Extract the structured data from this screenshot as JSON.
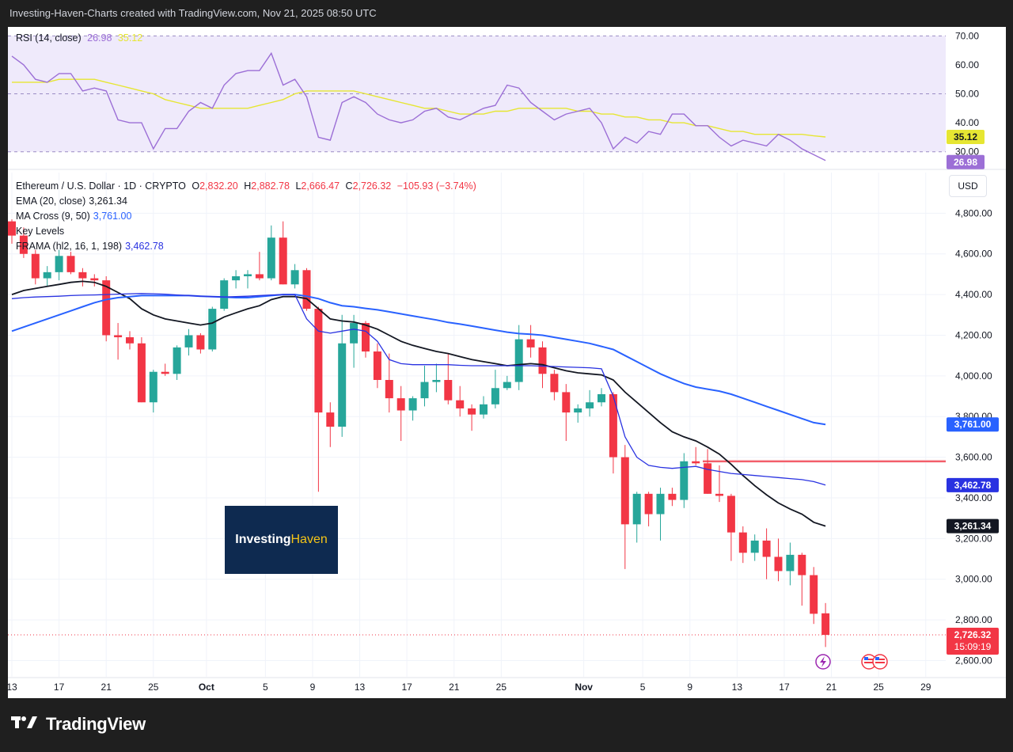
{
  "header": {
    "text": "Investing-Haven-Charts created with TradingView.com, Nov 21, 2025 08:50 UTC"
  },
  "brand": {
    "footer": "TradingView",
    "watermark_main": "Investing",
    "watermark_accent": "Haven"
  },
  "price_pane": {
    "currency_button": "USD",
    "legend": {
      "symbol": "Ethereum / U.S. Dollar · 1D · CRYPTO",
      "o_label": "O",
      "o_value": "2,832.20",
      "h_label": "H",
      "h_value": "2,882.78",
      "l_label": "L",
      "l_value": "2,666.47",
      "c_label": "C",
      "c_value": "2,726.32",
      "change": "−105.93 (−3.74%)",
      "ema_label": "EMA (20, close)",
      "ema_value": "3,261.34",
      "ma_label": "MA Cross (9, 50)",
      "ma_value": "3,761.00",
      "key_label": "Key Levels",
      "frama_label": "FRAMA (hl2, 16, 1, 198)",
      "frama_value": "3,462.78"
    },
    "tags": {
      "ma": "3,761.00",
      "frama": "3,462.78",
      "ema": "3,261.34",
      "last": "2,726.32",
      "countdown": "15:09:19"
    }
  },
  "rsi_pane": {
    "label": "RSI (14, close)",
    "rsi_value": "26.98",
    "ma_value": "35.12",
    "tags": {
      "ma": "35.12",
      "rsi": "26.98"
    }
  },
  "colors": {
    "up": "#26a69a",
    "down": "#f23645",
    "ema": "#131722",
    "ma": "#2962ff",
    "frama": "#2932e1",
    "rsi": "#9c6fd6",
    "rsi_ma": "#e6e632",
    "key_level": "#f23645"
  },
  "chart_data": [
    {
      "type": "candlestick",
      "title": "Ethereum / U.S. Dollar · 1D · CRYPTO",
      "ylim": [
        2520,
        5000
      ],
      "y_ticks": [
        "4,800.00",
        "4,600.00",
        "4,400.00",
        "4,200.00",
        "4,000.00",
        "3,800.00",
        "3,600.00",
        "3,400.00",
        "3,200.00",
        "3,000.00",
        "2,800.00",
        "2,600.00"
      ],
      "y_tick_values": [
        4800,
        4600,
        4400,
        4200,
        4000,
        3800,
        3600,
        3400,
        3200,
        3000,
        2800,
        2600
      ],
      "x_ticks": [
        "13",
        "17",
        "21",
        "25",
        "Oct",
        "5",
        "9",
        "13",
        "17",
        "21",
        "25",
        "Nov",
        "5",
        "9",
        "13",
        "17",
        "21",
        "25",
        "29"
      ],
      "candles": [
        [
          4760,
          4770,
          4650,
          4690
        ],
        [
          4690,
          4730,
          4580,
          4600
        ],
        [
          4600,
          4620,
          4450,
          4480
        ],
        [
          4480,
          4540,
          4440,
          4510
        ],
        [
          4510,
          4620,
          4470,
          4590
        ],
        [
          4590,
          4610,
          4500,
          4510
        ],
        [
          4510,
          4530,
          4440,
          4480
        ],
        [
          4480,
          4500,
          4440,
          4470
        ],
        [
          4470,
          4490,
          4170,
          4200
        ],
        [
          4200,
          4260,
          4080,
          4190
        ],
        [
          4190,
          4220,
          4130,
          4160
        ],
        [
          4160,
          4190,
          3870,
          3870
        ],
        [
          3870,
          4030,
          3820,
          4020
        ],
        [
          4020,
          4060,
          4000,
          4010
        ],
        [
          4010,
          4150,
          3980,
          4140
        ],
        [
          4140,
          4230,
          4100,
          4200
        ],
        [
          4200,
          4210,
          4110,
          4130
        ],
        [
          4130,
          4340,
          4120,
          4330
        ],
        [
          4330,
          4480,
          4320,
          4470
        ],
        [
          4470,
          4520,
          4430,
          4490
        ],
        [
          4490,
          4520,
          4430,
          4500
        ],
        [
          4500,
          4610,
          4470,
          4480
        ],
        [
          4480,
          4740,
          4470,
          4680
        ],
        [
          4680,
          4760,
          4450,
          4450
        ],
        [
          4450,
          4550,
          4430,
          4520
        ],
        [
          4520,
          4530,
          4320,
          4330
        ],
        [
          4330,
          4340,
          3430,
          3820
        ],
        [
          3820,
          3870,
          3650,
          3750
        ],
        [
          3750,
          4300,
          3700,
          4160
        ],
        [
          4160,
          4300,
          4040,
          4260
        ],
        [
          4260,
          4270,
          4090,
          4120
        ],
        [
          4120,
          4160,
          3940,
          3980
        ],
        [
          3980,
          4110,
          3820,
          3890
        ],
        [
          3890,
          3950,
          3680,
          3830
        ],
        [
          3830,
          3900,
          3780,
          3890
        ],
        [
          3890,
          4050,
          3850,
          3970
        ],
        [
          3970,
          4060,
          3920,
          3980
        ],
        [
          3980,
          4110,
          3860,
          3880
        ],
        [
          3880,
          3950,
          3800,
          3840
        ],
        [
          3840,
          3860,
          3730,
          3810
        ],
        [
          3810,
          3900,
          3790,
          3860
        ],
        [
          3860,
          4030,
          3840,
          3940
        ],
        [
          3940,
          4000,
          3930,
          3970
        ],
        [
          3970,
          4250,
          3930,
          4180
        ],
        [
          4180,
          4250,
          4090,
          4140
        ],
        [
          4140,
          4170,
          3940,
          4010
        ],
        [
          4010,
          4030,
          3880,
          3920
        ],
        [
          3920,
          3960,
          3680,
          3820
        ],
        [
          3820,
          3860,
          3770,
          3840
        ],
        [
          3840,
          3930,
          3800,
          3870
        ],
        [
          3870,
          3940,
          3850,
          3910
        ],
        [
          3910,
          3920,
          3520,
          3600
        ],
        [
          3600,
          3660,
          3050,
          3270
        ],
        [
          3270,
          3430,
          3180,
          3420
        ],
        [
          3420,
          3430,
          3260,
          3320
        ],
        [
          3320,
          3450,
          3190,
          3420
        ],
        [
          3420,
          3450,
          3360,
          3390
        ],
        [
          3390,
          3620,
          3350,
          3580
        ],
        [
          3580,
          3650,
          3560,
          3570
        ],
        [
          3570,
          3640,
          3420,
          3420
        ],
        [
          3420,
          3560,
          3380,
          3410
        ],
        [
          3410,
          3420,
          3090,
          3230
        ],
        [
          3230,
          3260,
          3080,
          3130
        ],
        [
          3130,
          3220,
          3090,
          3190
        ],
        [
          3190,
          3250,
          3000,
          3110
        ],
        [
          3110,
          3200,
          2990,
          3040
        ],
        [
          3040,
          3180,
          2970,
          3120
        ],
        [
          3120,
          3130,
          2870,
          3020
        ],
        [
          3020,
          3060,
          2780,
          2830
        ],
        [
          2832.2,
          2882.78,
          2666.47,
          2726.32
        ]
      ],
      "series": [
        {
          "name": "EMA (20, close)",
          "values": [
            4400,
            4420,
            4430,
            4440,
            4450,
            4460,
            4465,
            4460,
            4440,
            4410,
            4380,
            4330,
            4300,
            4280,
            4270,
            4260,
            4250,
            4260,
            4290,
            4310,
            4330,
            4345,
            4375,
            4390,
            4390,
            4380,
            4330,
            4280,
            4270,
            4265,
            4250,
            4230,
            4200,
            4170,
            4150,
            4135,
            4120,
            4110,
            4095,
            4080,
            4070,
            4060,
            4050,
            4055,
            4060,
            4055,
            4040,
            4025,
            4015,
            4010,
            4005,
            3980,
            3920,
            3870,
            3820,
            3770,
            3725,
            3700,
            3680,
            3650,
            3615,
            3565,
            3510,
            3460,
            3415,
            3375,
            3345,
            3320,
            3280,
            3261.34
          ]
        },
        {
          "name": "MA Cross (9, 50)",
          "values": [
            4220,
            4240,
            4260,
            4280,
            4300,
            4320,
            4340,
            4360,
            4375,
            4385,
            4390,
            4395,
            4395,
            4395,
            4395,
            4395,
            4392,
            4390,
            4388,
            4385,
            4385,
            4390,
            4395,
            4400,
            4400,
            4392,
            4380,
            4360,
            4345,
            4340,
            4332,
            4325,
            4315,
            4305,
            4295,
            4285,
            4275,
            4263,
            4255,
            4245,
            4235,
            4225,
            4215,
            4208,
            4205,
            4200,
            4190,
            4180,
            4170,
            4160,
            4145,
            4130,
            4100,
            4070,
            4040,
            4010,
            3985,
            3962,
            3945,
            3935,
            3925,
            3910,
            3890,
            3870,
            3850,
            3830,
            3810,
            3790,
            3770,
            3761.0
          ]
        },
        {
          "name": "FRAMA (hl2, 16, 1, 198)",
          "values": [
            4380,
            4385,
            4388,
            4390,
            4392,
            4395,
            4397,
            4398,
            4400,
            4402,
            4404,
            4405,
            4404,
            4402,
            4398,
            4395,
            4392,
            4390,
            4388,
            4390,
            4392,
            4395,
            4398,
            4400,
            4400,
            4280,
            4220,
            4210,
            4220,
            4230,
            4220,
            4170,
            4080,
            4060,
            4055,
            4055,
            4055,
            4055,
            4052,
            4050,
            4050,
            4050,
            4050,
            4050,
            4050,
            4048,
            4046,
            4044,
            4042,
            4040,
            4035,
            3900,
            3700,
            3600,
            3560,
            3550,
            3545,
            3550,
            3555,
            3540,
            3530,
            3520,
            3515,
            3510,
            3505,
            3500,
            3495,
            3490,
            3480,
            3462.78
          ]
        }
      ],
      "key_level": 3580
    },
    {
      "type": "line",
      "title": "RSI (14, close)",
      "ylim": [
        25,
        72
      ],
      "y_ticks": [
        "70.00",
        "60.00",
        "50.00",
        "40.00",
        "30.00"
      ],
      "y_tick_values": [
        70,
        60,
        50,
        40,
        30
      ],
      "series": [
        {
          "name": "RSI",
          "values": [
            63,
            60,
            55,
            54,
            57,
            57,
            51,
            52,
            51,
            41,
            40,
            40,
            31,
            38,
            38,
            44,
            47,
            45,
            53,
            57,
            58,
            58,
            64,
            53,
            55,
            49,
            35,
            34,
            47,
            49,
            47,
            43,
            41,
            40,
            41,
            44,
            45,
            42,
            41,
            43,
            45,
            46,
            53,
            52,
            47,
            44,
            41,
            43,
            44,
            45,
            40,
            31,
            35,
            33,
            37,
            36,
            43,
            43,
            39,
            39,
            35,
            32,
            34,
            33,
            32,
            36,
            34,
            31,
            29,
            26.98
          ]
        },
        {
          "name": "RSI MA",
          "values": [
            54,
            54,
            54,
            54,
            55,
            55,
            55,
            55,
            54,
            53,
            52,
            51,
            50,
            48,
            47,
            46,
            45,
            45,
            45,
            45,
            45,
            46,
            47,
            48,
            50,
            51,
            51,
            51,
            51,
            51,
            50,
            49,
            48,
            47,
            46,
            45,
            45,
            44,
            43,
            43,
            43,
            44,
            44,
            45,
            45,
            45,
            45,
            45,
            44,
            44,
            43,
            43,
            42,
            42,
            41,
            41,
            40,
            40,
            39,
            39,
            38,
            37,
            37,
            36,
            36,
            36,
            36,
            36,
            35.5,
            35.12
          ]
        }
      ],
      "bands": [
        30,
        70
      ],
      "midline": 50
    }
  ]
}
